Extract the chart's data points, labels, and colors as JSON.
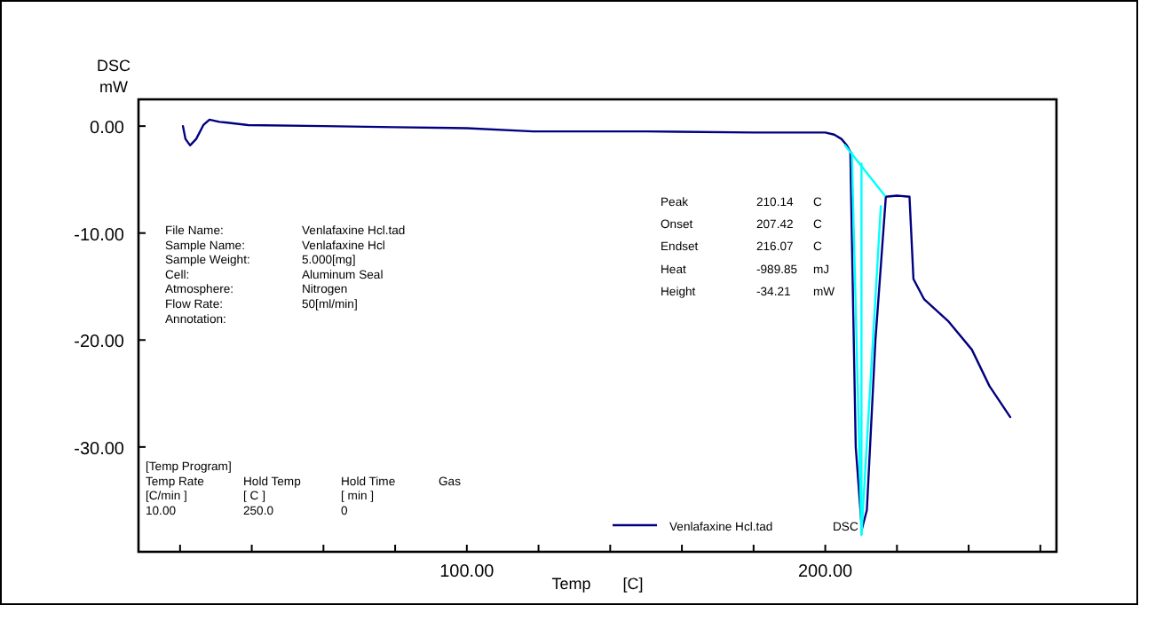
{
  "chart_data": {
    "type": "line",
    "xlabel": "Temp [C]",
    "ylabel": "DSC\nmW",
    "xlim": [
      8.4,
      264.5
    ],
    "ylim": [
      -39.8,
      2.5
    ],
    "xticks": [
      {
        "value": 20,
        "label": null
      },
      {
        "value": 40,
        "label": null
      },
      {
        "value": 60,
        "label": null
      },
      {
        "value": 80,
        "label": null
      },
      {
        "value": 100,
        "label": "100.00"
      },
      {
        "value": 120,
        "label": null
      },
      {
        "value": 140,
        "label": null
      },
      {
        "value": 160,
        "label": null
      },
      {
        "value": 180,
        "label": null
      },
      {
        "value": 200,
        "label": "200.00"
      },
      {
        "value": 220,
        "label": null
      },
      {
        "value": 240,
        "label": null
      },
      {
        "value": 260,
        "label": null
      }
    ],
    "yticks": [
      {
        "value": 0,
        "label": "0.00"
      },
      {
        "value": -10,
        "label": "-10.00"
      },
      {
        "value": -20,
        "label": "-20.00"
      },
      {
        "value": -30,
        "label": "-30.00"
      }
    ],
    "grid": false,
    "legend": "bottom right",
    "marker": "none",
    "line_style": "solid",
    "series": [
      {
        "name": "Venlafaxine Hcl.tad",
        "color": "#000080",
        "x": [
          20.8,
          21.5,
          22.8,
          24.5,
          26.5,
          28.2,
          31,
          39,
          60,
          80,
          100,
          118.5,
          150,
          180,
          200,
          202.5,
          204.5,
          206,
          207,
          207.4,
          208.5,
          210.2,
          211.6,
          214,
          216.9,
          220,
          223.5,
          224.6,
          227.6,
          234.2,
          240.9,
          245.8,
          251.6
        ],
        "values": [
          0,
          -1.2,
          -1.8,
          -1.2,
          0.1,
          0.6,
          0.4,
          0.1,
          0,
          -0.1,
          -0.2,
          -0.5,
          -0.5,
          -0.6,
          -0.6,
          -0.8,
          -1.2,
          -1.8,
          -2.4,
          -10,
          -30,
          -37.7,
          -35.9,
          -20,
          -6.6,
          -6.5,
          -6.6,
          -14.3,
          -16.2,
          -18.2,
          -20.9,
          -24.3,
          -27.2
        ]
      },
      {
        "color": "#00ffff",
        "x": [
          205.5,
          216.6
        ],
        "values": [
          -1.8,
          -6.5
        ]
      },
      {
        "color": "#00ffff",
        "x": [
          210.1,
          210.1
        ],
        "values": [
          -3.5,
          -38.2
        ]
      },
      {
        "color": "#00ffff",
        "x": [
          207.4,
          210.1,
          215.5
        ],
        "values": [
          -2.5,
          -38.2,
          -7.5
        ]
      }
    ],
    "annotations": [
      "File Name:\tVenlafaxine Hcl.tad\nSample Name:\tVenlafaxine Hcl\nSample Weight:\t5.000[mg]\nCell:\tAluminum Seal\nAtmosphere:\tNitrogen\nFlow Rate:\t50[ml/min]\nAnnotation:",
      "Peak\t210.14\tC\nOnset\t207.42\tC\nEndset\t216.07\tC\nHeat\t-989.85\tmJ\nHeight\t-34.21\tmW",
      "[Temp Program]\nTemp Rate\tHold Temp\tHold Time\tGas\n[C/min ]\t[ C ]\t[ min ]\n10.00\t250.0\t0",
      "DSC"
    ]
  }
}
